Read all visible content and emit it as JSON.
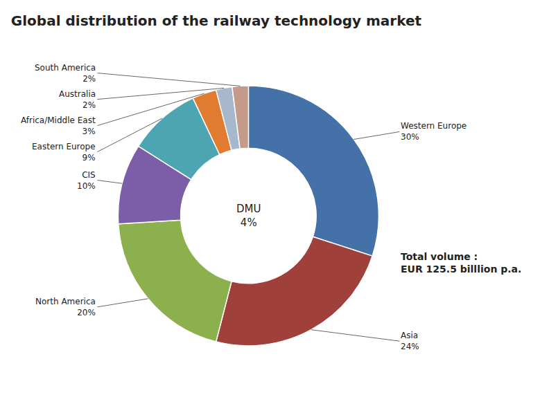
{
  "chart_data": {
    "type": "donut",
    "title": "Global distribution of the railway technology market",
    "categories": [
      "Western Europe",
      "Asia",
      "North America",
      "CIS",
      "Eastern Europe",
      "Africa/Middle East",
      "Australia",
      "South America"
    ],
    "values": [
      30,
      24,
      20,
      10,
      9,
      3,
      2,
      2
    ],
    "value_labels": [
      "30%",
      "24%",
      "20%",
      "10%",
      "9%",
      "3%",
      "2%",
      "2%"
    ],
    "colors": [
      "#4472A8",
      "#A0403A",
      "#8DB04E",
      "#7B5EA7",
      "#4CA5B0",
      "#E07B30",
      "#A8B8CC",
      "#C49A8A"
    ],
    "data_labels": true,
    "annotations": [
      "DMU\n4%",
      "Total volume :\nEUR 125.5 billlion p.a."
    ]
  }
}
